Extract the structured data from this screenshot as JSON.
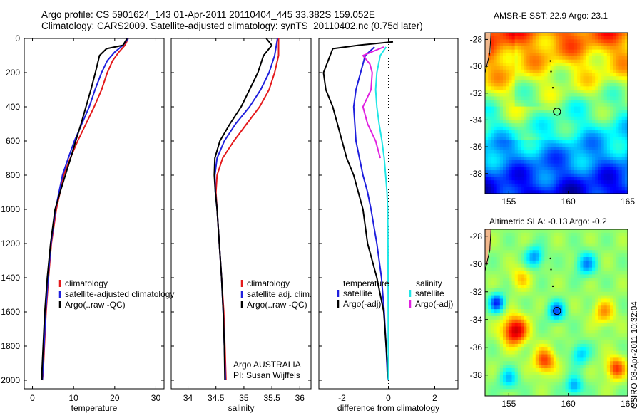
{
  "header": {
    "line1": "Argo profile: CS 5901624_143 01-Apr-2011 20110404_445 33.382S 159.052E",
    "line2": "Climatology: CARS2009. Satellite-adjusted climatology: synTS_20110402.nc (0.75d later)"
  },
  "credit": "CSIRO 08-Apr-2011 10:32:04",
  "colors": {
    "climatology": "#e41a1c",
    "satellite": "#1f1fdd",
    "argo": "#000000",
    "satellite_salinity": "#20e6e6",
    "argo_salinity_adj": "#e020e0"
  },
  "chart_data": [
    {
      "type": "line",
      "xlabel": "temperature",
      "ylim": [
        2050,
        0
      ],
      "xlim": [
        -2,
        32
      ],
      "xticks": [
        0,
        10,
        20,
        30
      ],
      "yticks": [
        0,
        200,
        400,
        600,
        800,
        1000,
        1200,
        1400,
        1600,
        1800,
        2000
      ],
      "legend": [
        "climatology",
        "satellite-adjusted climatology",
        "Argo(..raw -QC)"
      ],
      "series": [
        {
          "name": "climatology",
          "color": "#e41a1c",
          "x": [
            23.3,
            22.5,
            21.0,
            19.5,
            18.2,
            16.8,
            15.0,
            13.0,
            11.0,
            9.2,
            7.6,
            5.8,
            4.6,
            3.9,
            3.3,
            2.9,
            2.6,
            2.4
          ],
          "y": [
            0,
            40,
            80,
            130,
            200,
            300,
            400,
            500,
            600,
            700,
            800,
            1000,
            1200,
            1400,
            1600,
            1800,
            1950,
            2000
          ]
        },
        {
          "name": "satellite-adjusted climatology",
          "color": "#1f1fdd",
          "x": [
            23.3,
            22.0,
            20.0,
            18.2,
            16.8,
            15.2,
            13.8,
            12.0,
            10.2,
            8.7,
            7.3,
            5.6,
            4.5,
            3.8,
            3.2,
            2.8,
            2.5,
            2.4
          ],
          "y": [
            0,
            40,
            80,
            130,
            200,
            300,
            400,
            500,
            600,
            700,
            800,
            1000,
            1200,
            1400,
            1600,
            1800,
            1950,
            2000
          ]
        },
        {
          "name": "Argo(..raw -QC)",
          "color": "#000000",
          "x": [
            23.0,
            22.0,
            18.0,
            16.3,
            15.3,
            14.2,
            13.0,
            11.8,
            10.5,
            9.3,
            8.0,
            6.7,
            5.5,
            4.4,
            3.6,
            3.0,
            2.6,
            2.3,
            2.3
          ],
          "y": [
            0,
            40,
            60,
            100,
            200,
            300,
            400,
            500,
            600,
            700,
            800,
            900,
            1000,
            1200,
            1400,
            1600,
            1800,
            1950,
            2000
          ]
        }
      ]
    },
    {
      "type": "line",
      "xlabel": "salinity",
      "ylim": [
        2050,
        0
      ],
      "xlim": [
        33.7,
        36.2
      ],
      "xticks": [
        34,
        34.5,
        35,
        35.5,
        36
      ],
      "yticks": [
        0,
        200,
        400,
        600,
        800,
        1000,
        1200,
        1400,
        1600,
        1800,
        2000
      ],
      "legend": [
        "climatology",
        "satellite adj. clim.",
        "Argo(..raw -QC)"
      ],
      "annotation": [
        "Argo AUSTRALIA",
        "PI: Susan Wijffels"
      ],
      "series": [
        {
          "name": "climatology",
          "color": "#e41a1c",
          "x": [
            35.62,
            35.62,
            35.55,
            35.45,
            35.28,
            35.05,
            34.82,
            34.62,
            34.52,
            34.5,
            34.52,
            34.56,
            34.6,
            34.64,
            34.66,
            34.68
          ],
          "y": [
            0,
            100,
            200,
            300,
            400,
            500,
            600,
            700,
            800,
            900,
            1000,
            1200,
            1400,
            1600,
            1800,
            2000
          ]
        },
        {
          "name": "satellite adj. clim.",
          "color": "#1f1fdd",
          "x": [
            35.6,
            35.55,
            35.45,
            35.3,
            35.1,
            34.85,
            34.65,
            34.52,
            34.48,
            34.49,
            34.52,
            34.56,
            34.6,
            34.63,
            34.65,
            34.67
          ],
          "y": [
            0,
            100,
            200,
            300,
            400,
            500,
            600,
            700,
            800,
            900,
            1000,
            1200,
            1400,
            1600,
            1800,
            2000
          ]
        },
        {
          "name": "Argo(..raw -QC)",
          "color": "#000000",
          "x": [
            35.4,
            35.5,
            35.35,
            35.25,
            35.1,
            34.95,
            34.75,
            34.57,
            34.48,
            34.47,
            34.49,
            34.52,
            34.56,
            34.6,
            34.63,
            34.65,
            34.66
          ],
          "y": [
            0,
            40,
            100,
            200,
            300,
            400,
            500,
            600,
            700,
            800,
            900,
            1000,
            1200,
            1400,
            1600,
            1800,
            2000
          ]
        }
      ]
    },
    {
      "type": "line",
      "xlabel": "difference from climatology",
      "ylim": [
        2050,
        0
      ],
      "xlim": [
        -3,
        3
      ],
      "xticks": [
        -2,
        0,
        2
      ],
      "yticks": [
        0,
        200,
        400,
        600,
        800,
        1000,
        1200,
        1400,
        1600,
        1800,
        2000
      ],
      "zero_line": true,
      "legend_temperature": [
        "temperature",
        "satellite",
        "Argo(-adj)"
      ],
      "legend_salinity": [
        "salinity",
        "satellite",
        "Argo(-adj)"
      ],
      "series": [
        {
          "name": "temperature satellite",
          "color": "#1f1fdd",
          "x": [
            -0.6,
            -1.0,
            -1.2,
            -1.4,
            -1.5,
            -1.45,
            -1.4,
            -1.25,
            -1.1,
            -0.9,
            -0.75,
            -0.5,
            -0.3,
            -0.18,
            -0.1,
            -0.05,
            0.0
          ],
          "y": [
            50,
            100,
            200,
            300,
            400,
            500,
            600,
            700,
            800,
            900,
            1000,
            1200,
            1400,
            1600,
            1800,
            1950,
            2000
          ]
        },
        {
          "name": "temperature Argo(-adj)",
          "color": "#000000",
          "x": [
            0.2,
            -1.3,
            -2.4,
            -2.8,
            -2.7,
            -2.4,
            -2.2,
            -2.0,
            -1.8,
            -1.5,
            -1.3,
            -1.1,
            -0.9,
            -0.5,
            -0.2,
            -0.1,
            0.0
          ],
          "y": [
            20,
            40,
            60,
            200,
            300,
            400,
            500,
            600,
            700,
            800,
            900,
            1000,
            1200,
            1400,
            1600,
            1800,
            2000
          ]
        },
        {
          "name": "salinity satellite",
          "color": "#20e6e6",
          "x": [
            -0.1,
            -0.35,
            -0.5,
            -0.55,
            -0.5,
            -0.4,
            -0.28,
            -0.18,
            -0.12,
            -0.06,
            -0.03,
            -0.02,
            -0.01,
            0.0
          ],
          "y": [
            50,
            100,
            200,
            300,
            400,
            500,
            600,
            700,
            800,
            900,
            1000,
            1200,
            1600,
            2000
          ]
        },
        {
          "name": "salinity Argo(-adj)",
          "color": "#e020e0",
          "x": [
            -0.2,
            -1.1,
            -0.8,
            -0.7,
            -0.75,
            -1.1,
            -0.9,
            -0.55,
            -0.35
          ],
          "y": [
            50,
            100,
            150,
            200,
            300,
            400,
            500,
            600,
            700
          ]
        }
      ]
    },
    {
      "type": "heatmap",
      "title": "AMSR-E SST: 22.9 Argo: 23.1",
      "xlim": [
        153,
        165
      ],
      "ylim": [
        -39.5,
        -27.5
      ],
      "xticks": [
        155,
        160,
        165
      ],
      "yticks": [
        -28,
        -30,
        -32,
        -34,
        -36,
        -38
      ],
      "argo_position": [
        159.05,
        -33.38
      ]
    },
    {
      "type": "heatmap",
      "title": "Altimetric SLA: -0.13 Argo: -0.2",
      "xlim": [
        153,
        165
      ],
      "ylim": [
        -39.5,
        -27.5
      ],
      "xticks": [
        155,
        160,
        165
      ],
      "yticks": [
        -28,
        -30,
        -32,
        -34,
        -36,
        -38
      ],
      "argo_position": [
        159.05,
        -33.38
      ]
    }
  ]
}
